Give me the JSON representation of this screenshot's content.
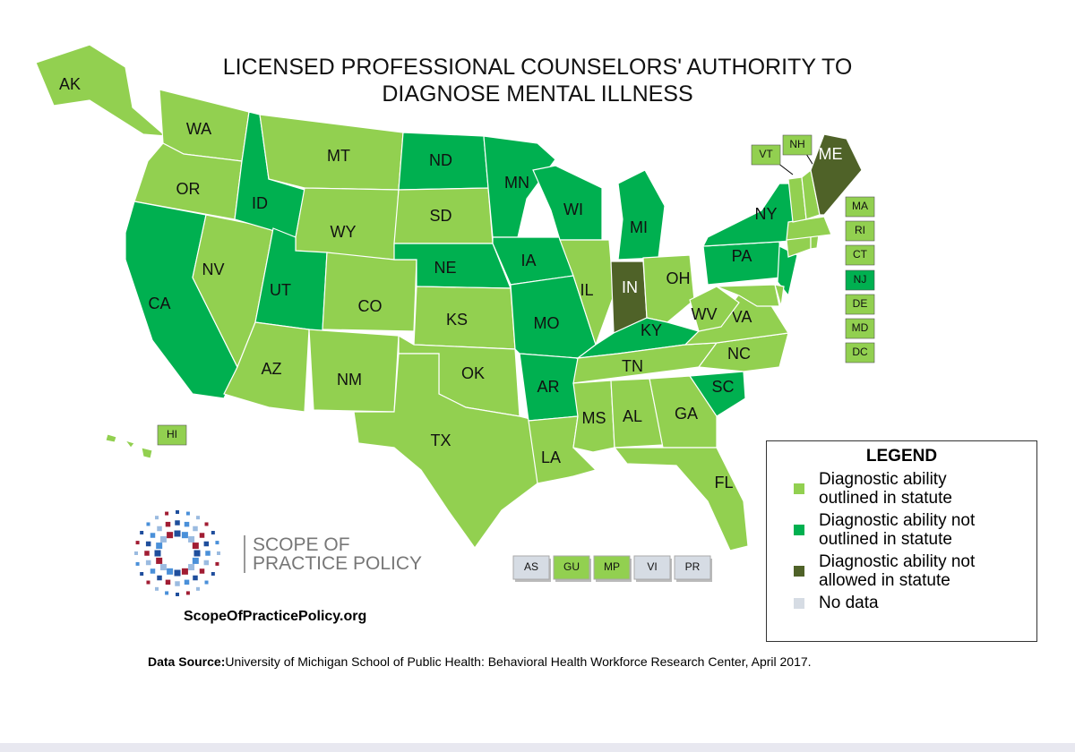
{
  "map": {
    "title_lines": [
      "LICENSED PROFESSIONAL COUNSELORS' AUTHORITY TO",
      "DIAGNOSE MENTAL ILLNESS"
    ],
    "states": [
      {
        "abbr": "AK",
        "color": "#92d050"
      },
      {
        "abbr": "WA",
        "color": "#92d050"
      },
      {
        "abbr": "OR",
        "color": "#92d050"
      },
      {
        "abbr": "CA",
        "color": "#00b050"
      },
      {
        "abbr": "NV",
        "color": "#92d050"
      },
      {
        "abbr": "ID",
        "color": "#00b050"
      },
      {
        "abbr": "MT",
        "color": "#92d050"
      },
      {
        "abbr": "WY",
        "color": "#92d050"
      },
      {
        "abbr": "UT",
        "color": "#00b050"
      },
      {
        "abbr": "CO",
        "color": "#92d050"
      },
      {
        "abbr": "AZ",
        "color": "#92d050"
      },
      {
        "abbr": "NM",
        "color": "#92d050"
      },
      {
        "abbr": "ND",
        "color": "#00b050"
      },
      {
        "abbr": "SD",
        "color": "#92d050"
      },
      {
        "abbr": "NE",
        "color": "#00b050"
      },
      {
        "abbr": "KS",
        "color": "#92d050"
      },
      {
        "abbr": "OK",
        "color": "#92d050"
      },
      {
        "abbr": "TX",
        "color": "#92d050"
      },
      {
        "abbr": "MN",
        "color": "#00b050"
      },
      {
        "abbr": "IA",
        "color": "#00b050"
      },
      {
        "abbr": "MO",
        "color": "#00b050"
      },
      {
        "abbr": "AR",
        "color": "#00b050"
      },
      {
        "abbr": "LA",
        "color": "#92d050"
      },
      {
        "abbr": "WI",
        "color": "#00b050"
      },
      {
        "abbr": "IL",
        "color": "#92d050"
      },
      {
        "abbr": "MI",
        "color": "#00b050"
      },
      {
        "abbr": "IN",
        "color": "#4f6228"
      },
      {
        "abbr": "OH",
        "color": "#92d050"
      },
      {
        "abbr": "KY",
        "color": "#00b050"
      },
      {
        "abbr": "TN",
        "color": "#92d050"
      },
      {
        "abbr": "MS",
        "color": "#92d050"
      },
      {
        "abbr": "AL",
        "color": "#92d050"
      },
      {
        "abbr": "GA",
        "color": "#92d050"
      },
      {
        "abbr": "FL",
        "color": "#92d050"
      },
      {
        "abbr": "SC",
        "color": "#00b050"
      },
      {
        "abbr": "NC",
        "color": "#92d050"
      },
      {
        "abbr": "VA",
        "color": "#92d050"
      },
      {
        "abbr": "WV",
        "color": "#92d050"
      },
      {
        "abbr": "PA",
        "color": "#00b050"
      },
      {
        "abbr": "NY",
        "color": "#00b050"
      },
      {
        "abbr": "NJ",
        "color": "#00b050"
      },
      {
        "abbr": "DE",
        "color": "#92d050"
      },
      {
        "abbr": "MD",
        "color": "#92d050"
      },
      {
        "abbr": "DC",
        "color": "#92d050"
      },
      {
        "abbr": "CT",
        "color": "#92d050"
      },
      {
        "abbr": "RI",
        "color": "#92d050"
      },
      {
        "abbr": "MA",
        "color": "#92d050"
      },
      {
        "abbr": "VT",
        "color": "#92d050"
      },
      {
        "abbr": "NH",
        "color": "#92d050"
      },
      {
        "abbr": "ME",
        "color": "#4f6228"
      },
      {
        "abbr": "HI",
        "color": "#92d050"
      }
    ],
    "territories": [
      {
        "abbr": "AS",
        "color": "#d6dce4"
      },
      {
        "abbr": "GU",
        "color": "#92d050"
      },
      {
        "abbr": "MP",
        "color": "#92d050"
      },
      {
        "abbr": "VI",
        "color": "#d6dce4"
      },
      {
        "abbr": "PR",
        "color": "#d6dce4"
      }
    ],
    "legend": {
      "title": "LEGEND",
      "items": [
        {
          "label": "Diagnostic ability outlined in statute",
          "color": "#92d050"
        },
        {
          "label": "Diagnostic ability not outlined in statute",
          "color": "#00b050"
        },
        {
          "label": "Diagnostic ability not allowed in statute",
          "color": "#4f6228"
        },
        {
          "label": "No data",
          "color": "#d6dce4"
        }
      ]
    },
    "logo_lines": [
      "SCOPE OF",
      "PRACTICE POLICY"
    ],
    "website": "ScopeOfPracticePolicy.org",
    "source": {
      "label": "Data Source:",
      "text": "University of Michigan School of Public Health: Behavioral Health Workforce Research Center, April 2017."
    }
  }
}
